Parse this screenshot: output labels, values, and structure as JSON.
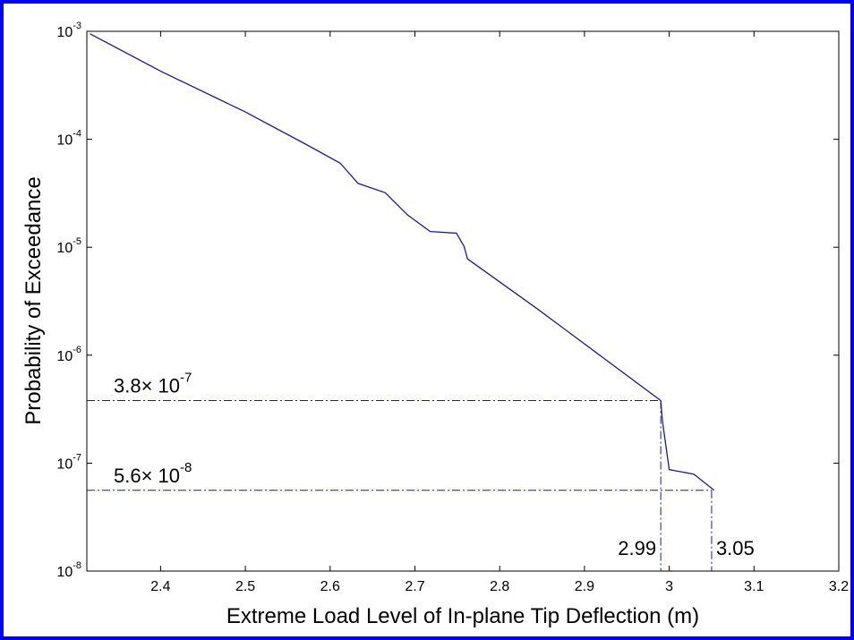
{
  "chart_data": {
    "type": "line",
    "xlabel": "Extreme Load Level of In-plane Tip Deflection (m)",
    "ylabel": "Probability of Exceedance",
    "xlim": [
      2.313,
      3.2
    ],
    "ylim": [
      1e-08,
      0.001
    ],
    "log_y": true,
    "xticks": [
      2.4,
      2.5,
      2.6,
      2.7,
      2.8,
      2.9,
      3,
      3.1,
      3.2
    ],
    "yticks": [
      {
        "value": 1e-08,
        "label": "10",
        "exponent": "-8"
      },
      {
        "value": 1e-07,
        "label": "10",
        "exponent": "-7"
      },
      {
        "value": 1e-06,
        "label": "10",
        "exponent": "-6"
      },
      {
        "value": 1e-05,
        "label": "10",
        "exponent": "-5"
      },
      {
        "value": 0.0001,
        "label": "10",
        "exponent": "-4"
      },
      {
        "value": 0.001,
        "label": "10",
        "exponent": "-3"
      }
    ],
    "x": [
      2.3166,
      2.401,
      2.5,
      2.57,
      2.612,
      2.633,
      2.665,
      2.691,
      2.718,
      2.749,
      2.758,
      2.762,
      2.844,
      2.99,
      2.992,
      3.0,
      3.029,
      3.053
    ],
    "series": [
      {
        "color": "#1c1c8a",
        "values": [
          0.00095,
          0.000424,
          0.000179,
          9.1e-05,
          6e-05,
          3.9e-05,
          3.2e-05,
          2e-05,
          1.4e-05,
          1.35e-05,
          1.02e-05,
          7.8e-06,
          2.7e-06,
          3.8e-07,
          2.45e-07,
          8.7e-08,
          7.9e-08,
          5.6e-08
        ]
      }
    ],
    "hlines": [
      {
        "value": 3.8e-07,
        "x_end": 2.99,
        "label": "3.8× 10",
        "exponent": "-7"
      },
      {
        "value": 5.6e-08,
        "x_end": 3.05,
        "label": "5.6× 10",
        "exponent": "-8"
      }
    ],
    "vlines": [
      {
        "value": 2.99,
        "y_end": 3.8e-07
      },
      {
        "value": 3.05,
        "y_end": 5.6e-08
      }
    ],
    "annotation_color": "#1c1c8a"
  }
}
